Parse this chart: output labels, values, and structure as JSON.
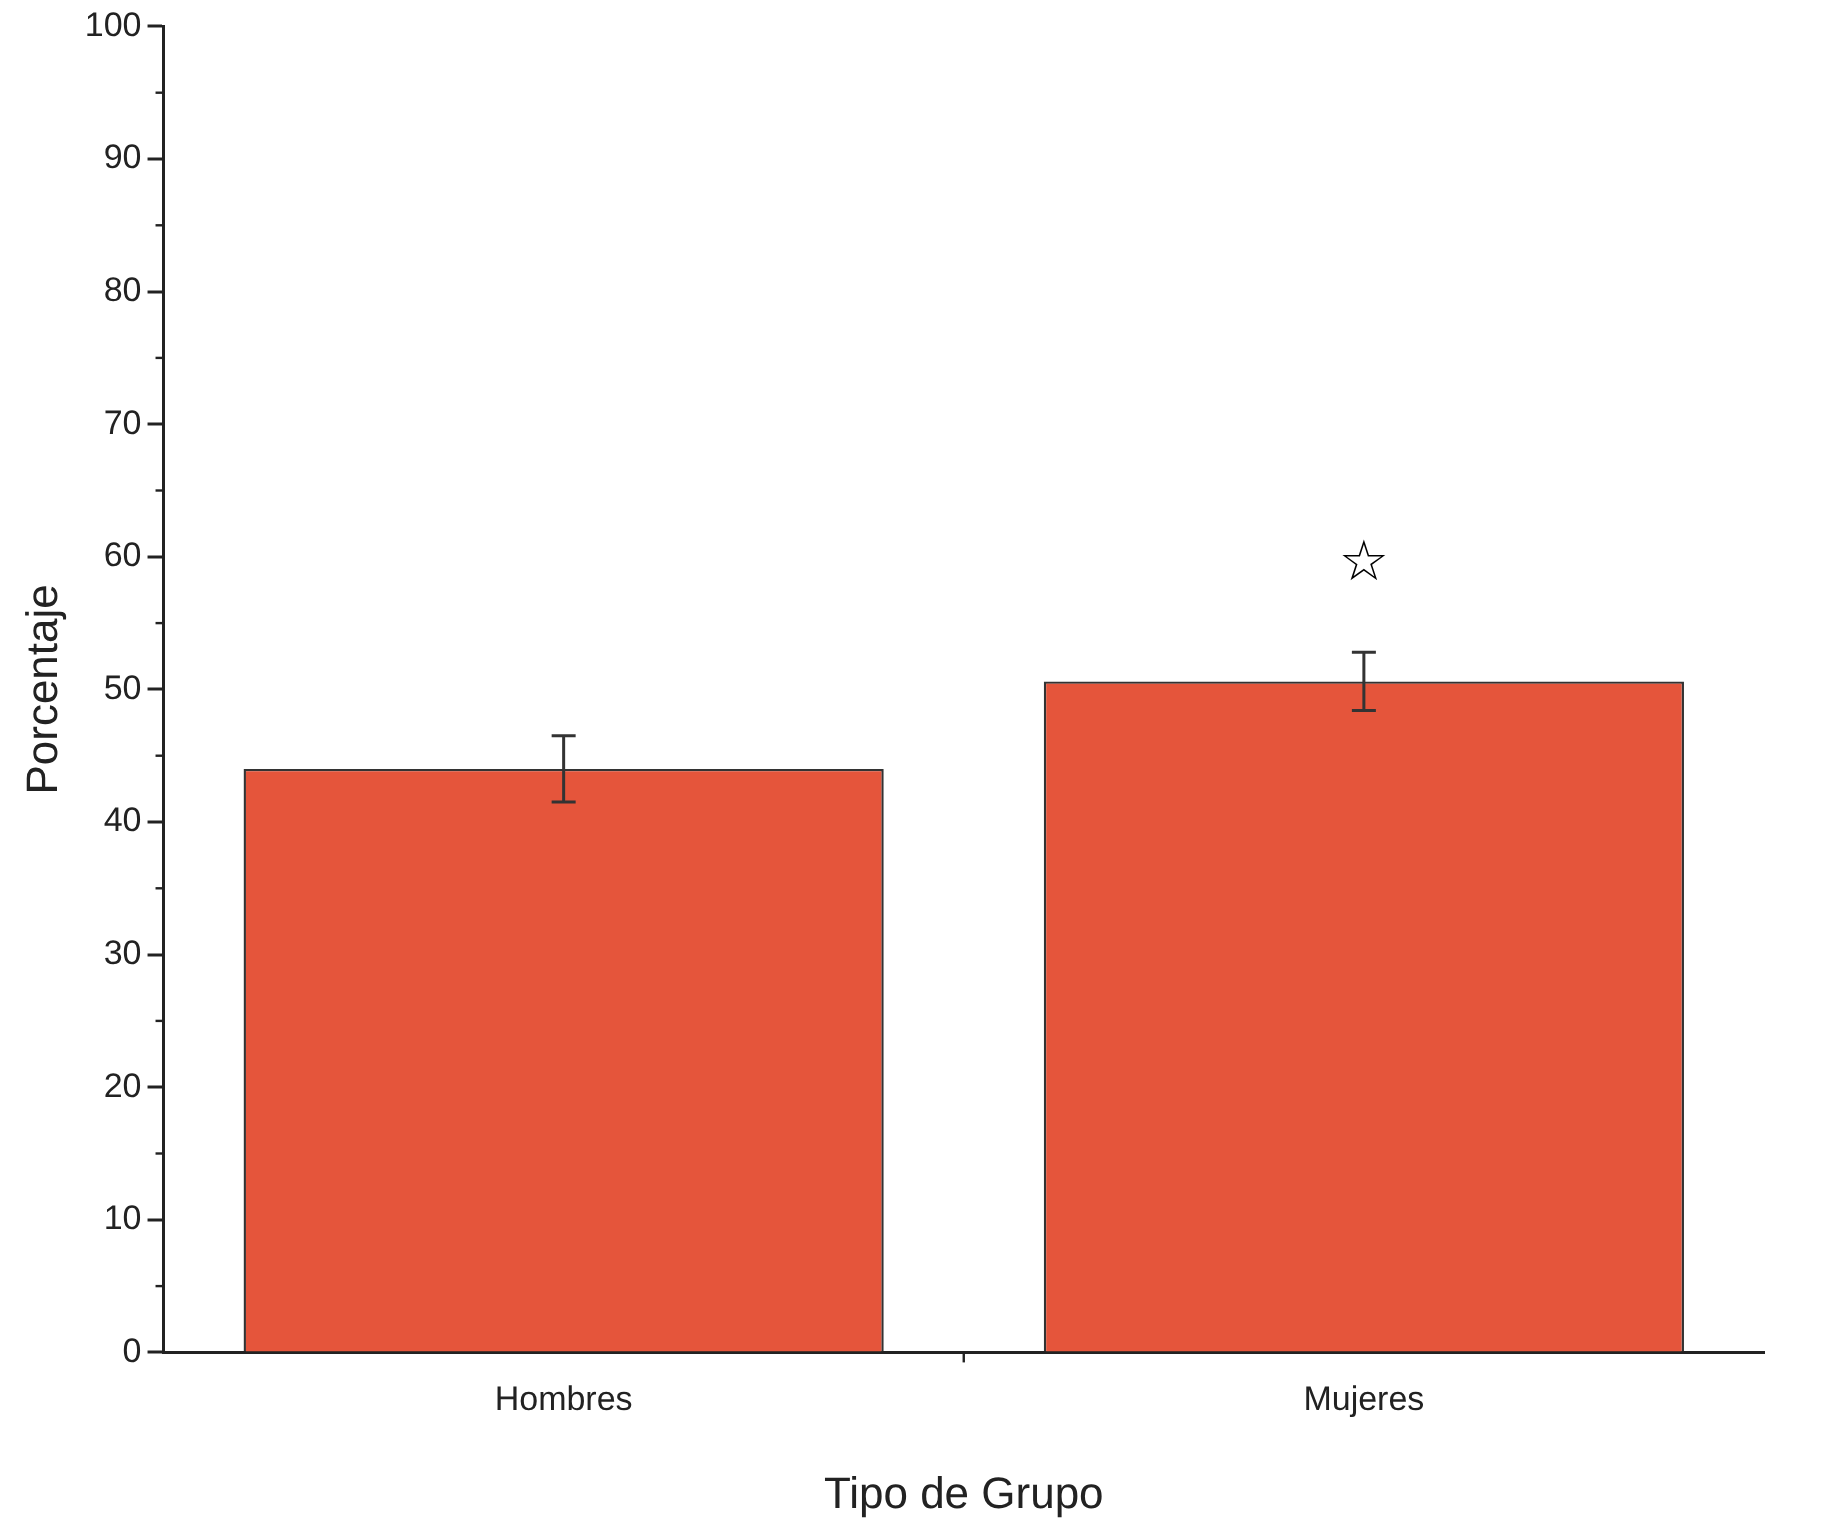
{
  "chart_data": {
    "type": "bar",
    "xlabel": "Tipo de Grupo",
    "ylabel": "Porcentaje",
    "categories": [
      "Hombres",
      "Mujeres"
    ],
    "values": [
      44.0,
      50.6
    ],
    "color": "#e5553b",
    "errors": [
      2.5,
      2.2
    ],
    "ylim": [
      0,
      100
    ],
    "yticks": [
      0,
      10,
      20,
      30,
      40,
      50,
      60,
      70,
      80,
      90,
      100
    ],
    "grid": false,
    "legend": false,
    "annotations": [
      "☆"
    ]
  }
}
